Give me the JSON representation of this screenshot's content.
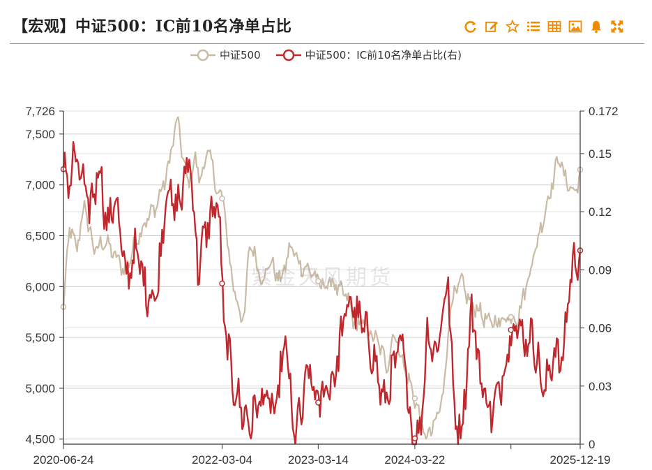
{
  "header": {
    "title": "【宏观】中证500：IC前10名净单占比",
    "icons": [
      "refresh-icon",
      "edit-icon",
      "star-icon",
      "list-icon",
      "table-icon",
      "image-icon",
      "bell-icon",
      "expand-icon"
    ],
    "accent_color": "#f08a00"
  },
  "watermark": "紫金天风期货",
  "chart_data": {
    "type": "line",
    "title": "【宏观】中证500：IC前10名净单占比",
    "x_ticks": [
      "2020-06-24",
      "2022-03-04",
      "2023-03-14",
      "2024-03-22",
      "2025-12-19"
    ],
    "x_tick_positions_index": [
      0,
      1,
      2,
      3,
      4
    ],
    "y_left": {
      "min": 4450,
      "max": 7726,
      "ticks": [
        4500,
        5000,
        5500,
        6000,
        6500,
        7000,
        7500,
        7726
      ],
      "tick_labels": [
        "4,500",
        "5,000",
        "5,500",
        "6,000",
        "6,500",
        "7,000",
        "7,500",
        "7,726"
      ]
    },
    "y_right": {
      "min": 0,
      "max": 0.172,
      "ticks": [
        0,
        0.03,
        0.06,
        0.09,
        0.12,
        0.15,
        0.172
      ],
      "tick_labels": [
        "0",
        "0.03",
        "0.06",
        "0.09",
        "0.12",
        "0.15",
        "0.172"
      ]
    },
    "series": [
      {
        "name": "中证500",
        "axis": "left",
        "color": "#c9bba5",
        "x_frac": [
          0,
          0.003,
          0.012,
          0.025,
          0.04,
          0.06,
          0.08,
          0.1,
          0.12,
          0.14,
          0.16,
          0.18,
          0.2,
          0.22,
          0.24,
          0.255,
          0.265,
          0.28,
          0.3,
          0.31,
          0.32,
          0.335,
          0.35,
          0.36,
          0.37,
          0.385,
          0.4,
          0.42,
          0.44,
          0.46,
          0.48,
          0.5,
          0.52,
          0.535,
          0.55,
          0.565,
          0.58,
          0.6,
          0.615,
          0.625,
          0.64,
          0.66,
          0.68,
          0.7,
          0.72,
          0.735,
          0.75,
          0.77,
          0.79,
          0.8,
          0.82,
          0.84,
          0.86,
          0.88,
          0.9,
          0.92,
          0.94,
          0.96,
          0.97,
          0.98,
          0.99,
          1.0
        ],
        "values": [
          5800,
          6000,
          6600,
          6350,
          6800,
          6350,
          6450,
          6300,
          6150,
          6450,
          6650,
          6800,
          7100,
          7650,
          7000,
          7250,
          7050,
          7350,
          6900,
          6850,
          6300,
          5850,
          5650,
          6450,
          6300,
          6050,
          6250,
          6050,
          6400,
          6200,
          6150,
          6000,
          6050,
          5950,
          5900,
          5600,
          5650,
          5500,
          5400,
          5200,
          5550,
          5200,
          4900,
          4500,
          4650,
          4950,
          5850,
          6050,
          5800,
          5800,
          5650,
          5650,
          5700,
          5700,
          6100,
          6500,
          6900,
          7300,
          7050,
          7000,
          6900,
          7150
        ]
      },
      {
        "name": "中证500：IC前10名净单占比(右)",
        "axis": "right",
        "color": "#c0282e",
        "x_frac": [
          0,
          0.01,
          0.02,
          0.035,
          0.05,
          0.07,
          0.085,
          0.1,
          0.12,
          0.14,
          0.16,
          0.18,
          0.2,
          0.215,
          0.23,
          0.245,
          0.26,
          0.28,
          0.3,
          0.31,
          0.32,
          0.33,
          0.345,
          0.36,
          0.375,
          0.39,
          0.41,
          0.43,
          0.445,
          0.46,
          0.475,
          0.49,
          0.51,
          0.525,
          0.54,
          0.555,
          0.57,
          0.59,
          0.605,
          0.62,
          0.635,
          0.65,
          0.66,
          0.675,
          0.69,
          0.705,
          0.72,
          0.735,
          0.745,
          0.755,
          0.77,
          0.79,
          0.81,
          0.83,
          0.85,
          0.87,
          0.89,
          0.91,
          0.93,
          0.95,
          0.965,
          0.98,
          0.99,
          1.0
        ],
        "values": [
          0.142,
          0.135,
          0.148,
          0.138,
          0.12,
          0.145,
          0.11,
          0.13,
          0.085,
          0.1,
          0.08,
          0.075,
          0.135,
          0.12,
          0.13,
          0.15,
          0.09,
          0.115,
          0.125,
          0.065,
          0.045,
          0.03,
          0.018,
          0.01,
          0.02,
          0.025,
          0.015,
          0.055,
          0.005,
          0.015,
          0.04,
          0.02,
          0.03,
          0.035,
          0.06,
          0.075,
          0.065,
          0.055,
          0.04,
          0.02,
          0.035,
          0.05,
          0.045,
          0.002,
          0.005,
          0.06,
          0.045,
          0.07,
          0.085,
          0.02,
          0.005,
          0.07,
          0.03,
          0.015,
          0.035,
          0.065,
          0.055,
          0.055,
          0.025,
          0.05,
          0.04,
          0.085,
          0.095,
          0.1
        ]
      }
    ],
    "legend_position": "top-center"
  }
}
